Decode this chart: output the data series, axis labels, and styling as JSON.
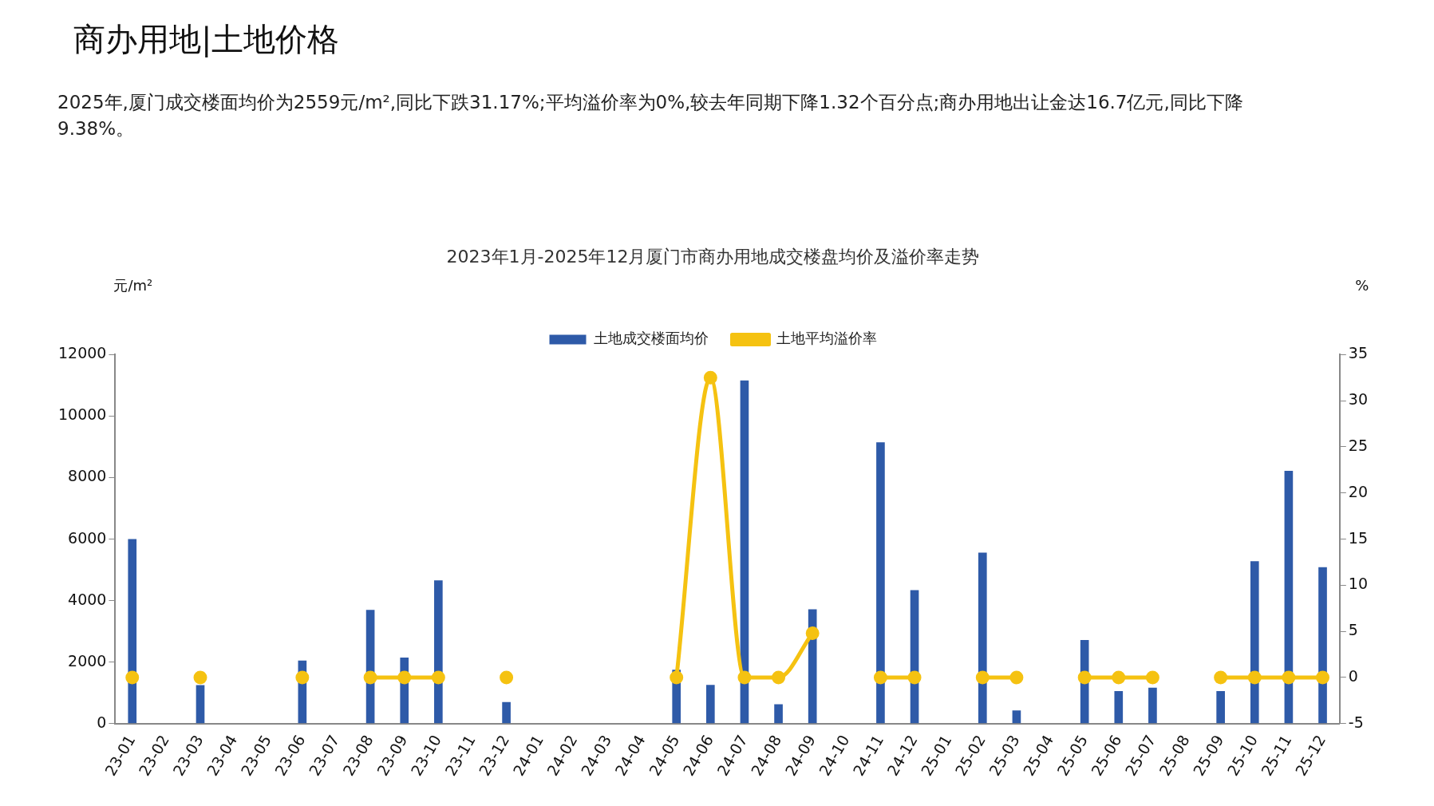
{
  "chart_data": {
    "type": "bar",
    "title": "2023年1月-2025年12月厦门市商办用地成交楼盘均价及溢价率走势",
    "annotations": [
      "商办用地|土地价格",
      "2025年,厦门成交楼面均价为2559元/m²,同比下跌31.17%;平均溢价率为0%,较去年同期下降1.32个百分点;商办用地出让金达16.7亿元,同比下降9.38%。"
    ],
    "ylabel": "元/m²",
    "y2label": "%",
    "categories": [
      "23-01",
      "23-02",
      "23-03",
      "23-04",
      "23-05",
      "23-06",
      "23-07",
      "23-08",
      "23-09",
      "23-10",
      "23-11",
      "23-12",
      "24-01",
      "24-02",
      "24-03",
      "24-04",
      "24-05",
      "24-06",
      "24-07",
      "24-08",
      "24-09",
      "24-10",
      "24-11",
      "24-12",
      "25-01",
      "25-02",
      "25-03",
      "25-04",
      "25-05",
      "25-06",
      "25-07",
      "25-08",
      "25-09",
      "25-10",
      "25-11",
      "25-12"
    ],
    "series": [
      {
        "name": "土地成交楼面均价",
        "color": "#2e5aa8",
        "values": [
          6000,
          null,
          1250,
          null,
          null,
          2050,
          null,
          3700,
          2150,
          4660,
          null,
          700,
          null,
          null,
          null,
          null,
          1750,
          1260,
          11160,
          630,
          3720,
          null,
          9150,
          4340,
          null,
          5560,
          430,
          null,
          2720,
          1060,
          1170,
          null,
          1060,
          5280,
          8220,
          5090
        ]
      },
      {
        "name": "土地平均溢价率",
        "type": "line",
        "axis": "y2",
        "color": "#f5c211",
        "marker": "circle",
        "values": [
          0,
          null,
          0,
          null,
          null,
          0,
          null,
          0,
          0,
          0,
          null,
          0,
          null,
          null,
          null,
          null,
          0,
          32.5,
          0,
          0,
          4.8,
          null,
          0,
          0,
          null,
          0,
          0,
          null,
          0,
          0,
          0,
          null,
          0,
          0,
          0,
          0
        ]
      }
    ],
    "ylim": [
      0,
      12000
    ],
    "yticks": [
      0,
      2000,
      4000,
      6000,
      8000,
      10000,
      12000
    ],
    "y2lim": [
      -5,
      35
    ],
    "y2ticks": [
      -5,
      0,
      5,
      10,
      15,
      20,
      25,
      30,
      35
    ],
    "legend": "top",
    "grid": false
  }
}
